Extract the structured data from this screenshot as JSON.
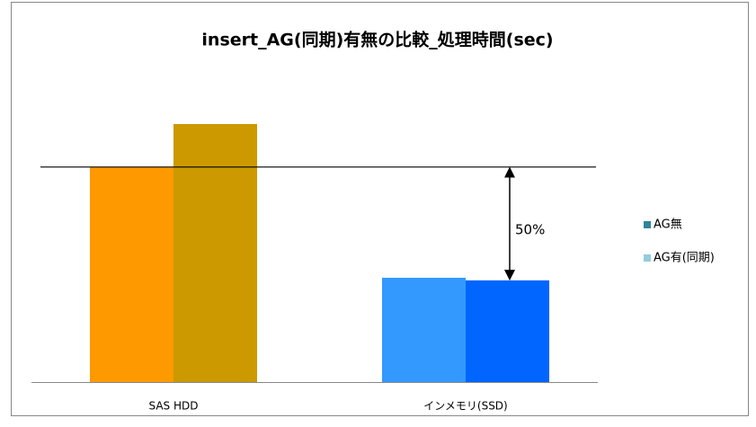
{
  "chart_data": {
    "type": "bar",
    "title": "insert_AG(同期)有無の比較_処理時間(sec)",
    "categories": [
      "SAS HDD",
      "インメモリ(SSD)"
    ],
    "series": [
      {
        "name": "AG無",
        "color": "#31849b",
        "colors": [
          "#ff9900",
          "#3399ff"
        ],
        "values": [
          100,
          48.5
        ]
      },
      {
        "name": "AG有(同期)",
        "color": "#93cddd",
        "colors": [
          "#cc9900",
          "#0066ff"
        ],
        "values": [
          120,
          47.3
        ]
      }
    ],
    "annotation": "50%",
    "legend": "right"
  }
}
